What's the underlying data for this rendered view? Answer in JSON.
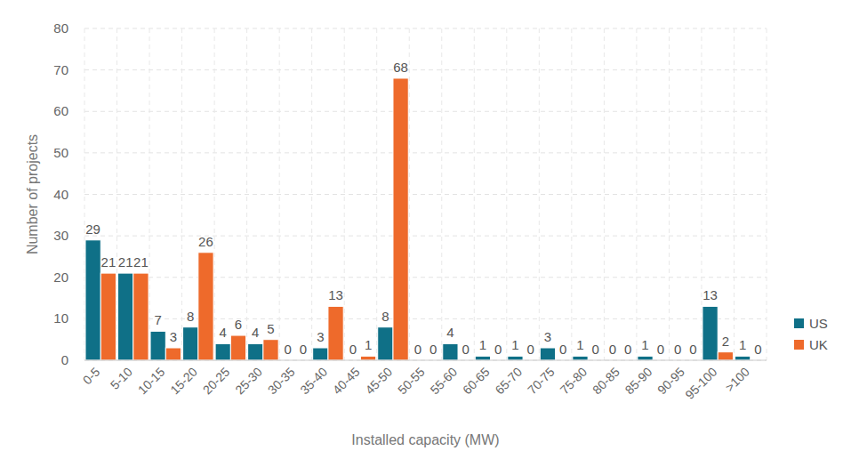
{
  "chart_data": {
    "type": "bar",
    "x_label": "Installed capacity (MW)",
    "y_label": "Number of projects",
    "categories": [
      "0-5",
      "5-10",
      "10-15",
      "15-20",
      "20-25",
      "25-30",
      "30-35",
      "35-40",
      "40-45",
      "45-50",
      "50-55",
      "55-60",
      "60-65",
      "65-70",
      "70-75",
      "75-80",
      "80-85",
      "85-90",
      "90-95",
      "95-100",
      ">100"
    ],
    "series": [
      {
        "name": "US",
        "color": "#0f7087",
        "values": [
          29,
          21,
          7,
          8,
          4,
          4,
          0,
          3,
          0,
          8,
          0,
          4,
          1,
          1,
          3,
          1,
          0,
          1,
          0,
          13,
          1
        ]
      },
      {
        "name": "UK",
        "color": "#ee6a2b",
        "values": [
          21,
          21,
          3,
          26,
          6,
          5,
          0,
          13,
          1,
          68,
          0,
          0,
          0,
          0,
          0,
          0,
          0,
          0,
          0,
          2,
          0
        ]
      }
    ],
    "ylim": [
      0,
      80
    ],
    "yticks": [
      0,
      10,
      20,
      30,
      40,
      50,
      60,
      70,
      80
    ],
    "grid": true,
    "legend": "right",
    "data_labels": true
  }
}
